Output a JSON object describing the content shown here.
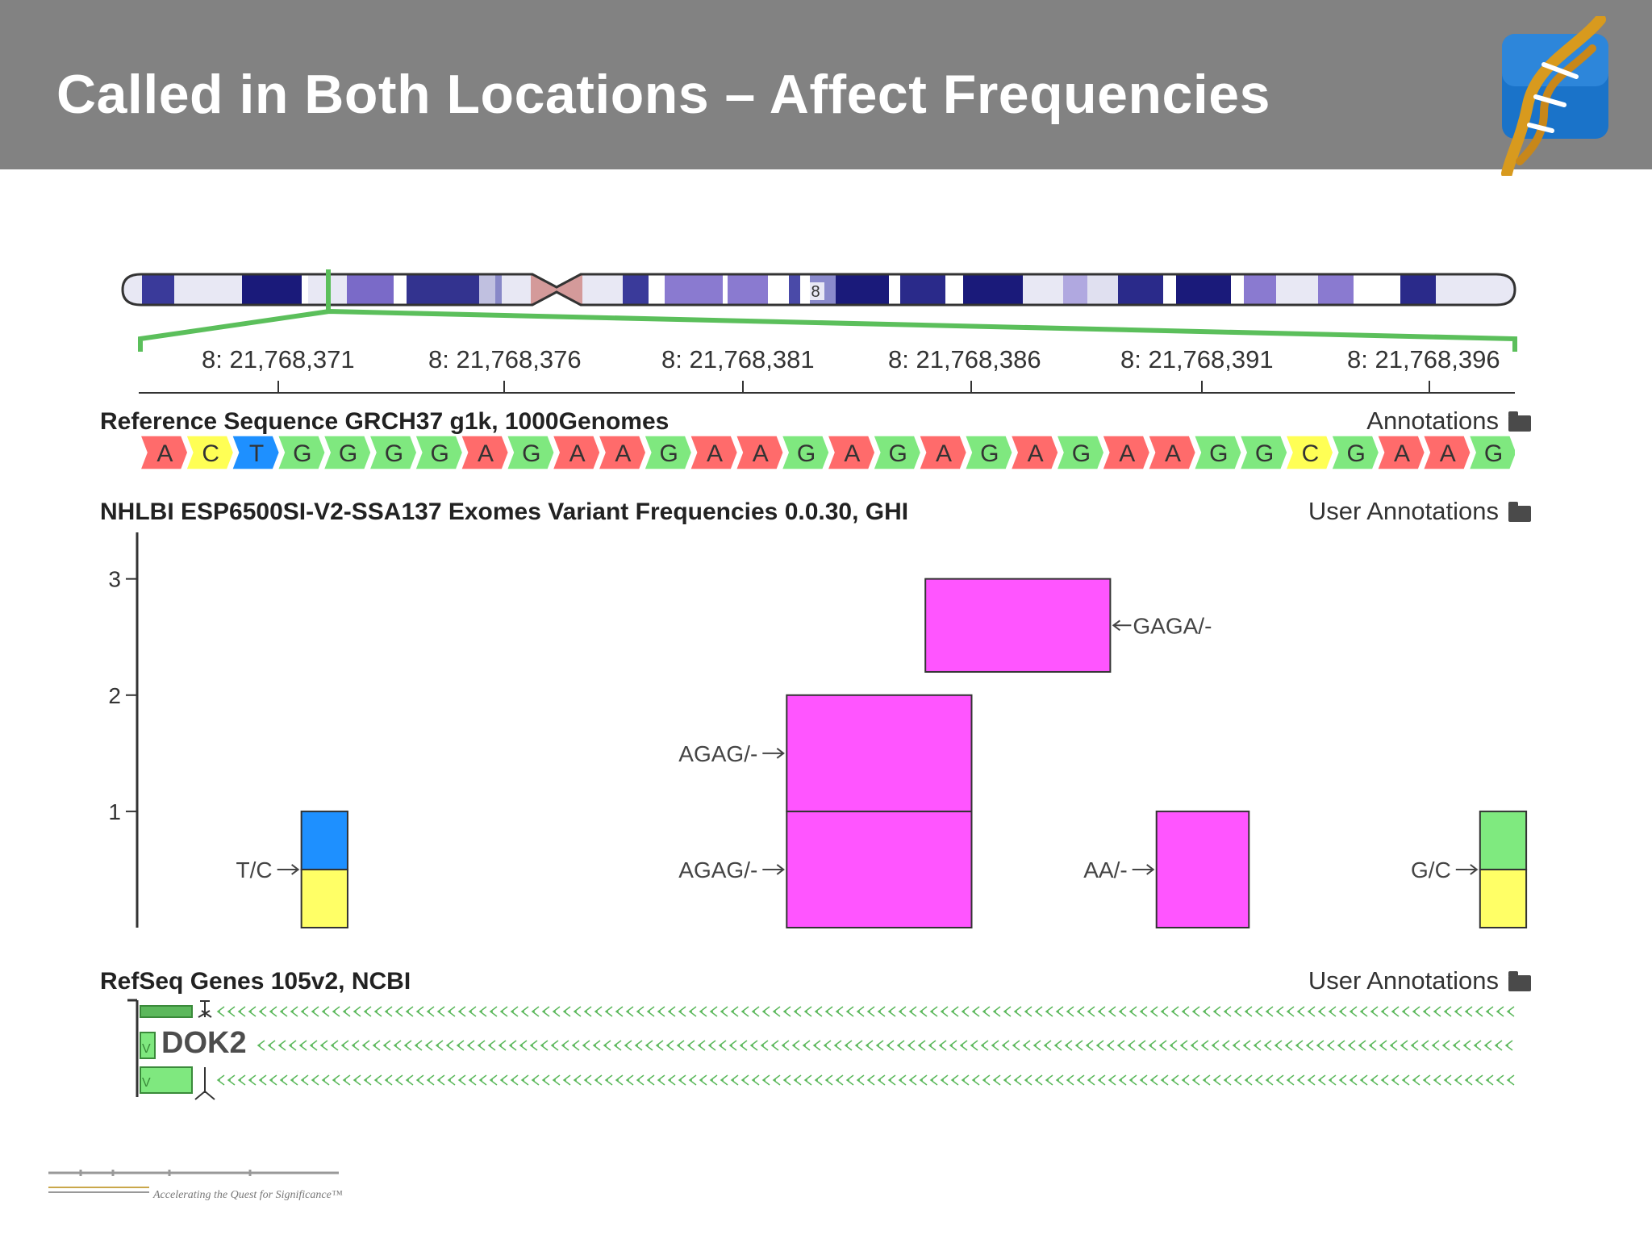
{
  "slide": {
    "title": "Called in Both Locations – Affect Frequencies"
  },
  "ideogram": {
    "chromosome_label": "8"
  },
  "ruler": {
    "positions": [
      "8: 21,768,371",
      "8: 21,768,376",
      "8: 21,768,381",
      "8: 21,768,386",
      "8: 21,768,391",
      "8: 21,768,396"
    ]
  },
  "tracks": {
    "reference": {
      "title": "Reference Sequence GRCH37 g1k, 1000Genomes",
      "annotations_label": "Annotations",
      "bases": [
        "A",
        "C",
        "T",
        "G",
        "G",
        "G",
        "G",
        "A",
        "G",
        "A",
        "A",
        "G",
        "A",
        "A",
        "G",
        "A",
        "G",
        "A",
        "G",
        "A",
        "G",
        "A",
        "A",
        "G",
        "G",
        "C",
        "G",
        "A",
        "A",
        "G"
      ]
    },
    "variants": {
      "title": "NHLBI ESP6500SI-V2-SSA137 Exomes Variant Frequencies 0.0.30, GHI",
      "annotations_label": "User Annotations"
    },
    "genes": {
      "title": "RefSeq Genes 105v2, NCBI",
      "annotations_label": "User Annotations",
      "gene_name": "DOK2",
      "strand_marks": [
        "V",
        "V"
      ]
    }
  },
  "chart_data": {
    "type": "bar",
    "ylim": [
      0,
      3.4
    ],
    "yticks": [
      "1",
      "2",
      "3"
    ],
    "bars": [
      {
        "label": "T/C",
        "label_side": "left",
        "x_start": 21768371.5,
        "x_end": 21768372.5,
        "y_bottom": 0,
        "y_top": 1,
        "colors": [
          "#ffff66",
          "#1e90ff"
        ]
      },
      {
        "label": "AGAG/-",
        "label_side": "left",
        "x_start": 21768382,
        "x_end": 21768386,
        "y_bottom": 0,
        "y_top": 1,
        "colors": [
          "#ff55ff"
        ]
      },
      {
        "label": "AGAG/-",
        "label_side": "left",
        "x_start": 21768382,
        "x_end": 21768386,
        "y_bottom": 1,
        "y_top": 2,
        "colors": [
          "#ff55ff"
        ]
      },
      {
        "label": "GAGA/-",
        "label_side": "right",
        "x_start": 21768385,
        "x_end": 21768389,
        "y_bottom": 2.2,
        "y_top": 3,
        "colors": [
          "#ff55ff"
        ]
      },
      {
        "label": "AA/-",
        "label_side": "left",
        "x_start": 21768390,
        "x_end": 21768392,
        "y_bottom": 0,
        "y_top": 1,
        "colors": [
          "#ff55ff"
        ]
      },
      {
        "label": "G/C",
        "label_side": "left",
        "x_start": 21768397,
        "x_end": 21768398,
        "y_bottom": 0,
        "y_top": 1,
        "colors": [
          "#ffff66",
          "#7fea7f"
        ]
      }
    ]
  },
  "colors": {
    "header": "#828282",
    "base_A": "#ff6b6b",
    "base_C": "#ffff55",
    "base_G": "#7fe87f",
    "base_T": "#1e90ff",
    "variant": "#ff55ff",
    "zoom_lines": "#5bbf5b"
  },
  "footer": {
    "tagline": "Accelerating the Quest for Significance™"
  }
}
